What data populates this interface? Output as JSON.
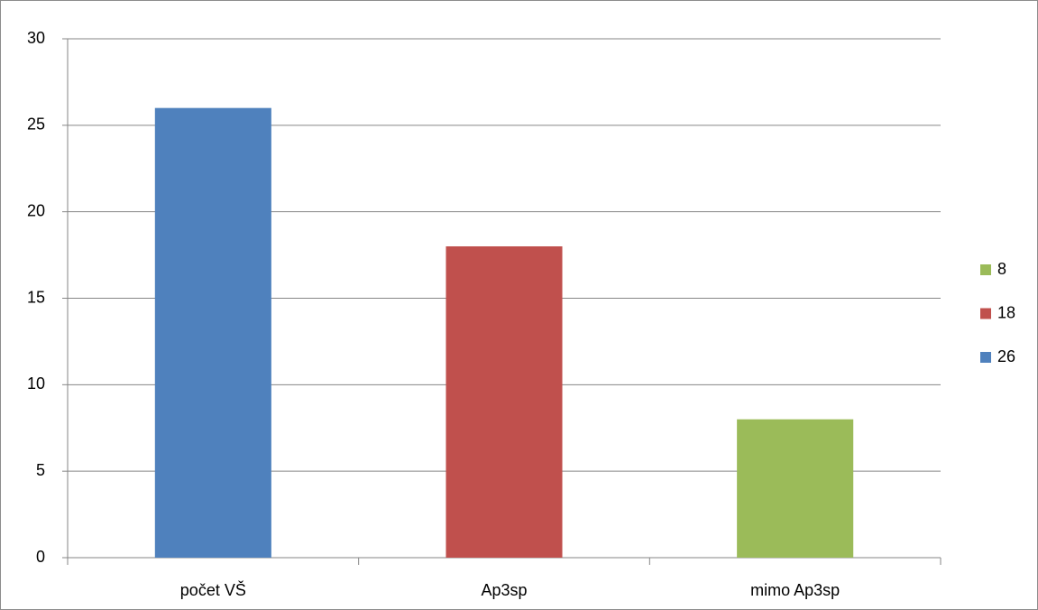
{
  "chart_data": {
    "type": "bar",
    "categories": [
      "počet VŠ",
      "Ap3sp",
      "mimo Ap3sp"
    ],
    "series": [
      {
        "name": "8",
        "color": "#9bbb59",
        "values": [
          null,
          null,
          8
        ]
      },
      {
        "name": "18",
        "color": "#c0504d",
        "values": [
          null,
          18,
          null
        ]
      },
      {
        "name": "26",
        "color": "#4f81bd",
        "values": [
          26,
          null,
          null
        ]
      }
    ],
    "ylim": [
      0,
      30
    ],
    "yticks": [
      0,
      5,
      10,
      15,
      20,
      25,
      30
    ],
    "grid": true,
    "legend": "right"
  }
}
